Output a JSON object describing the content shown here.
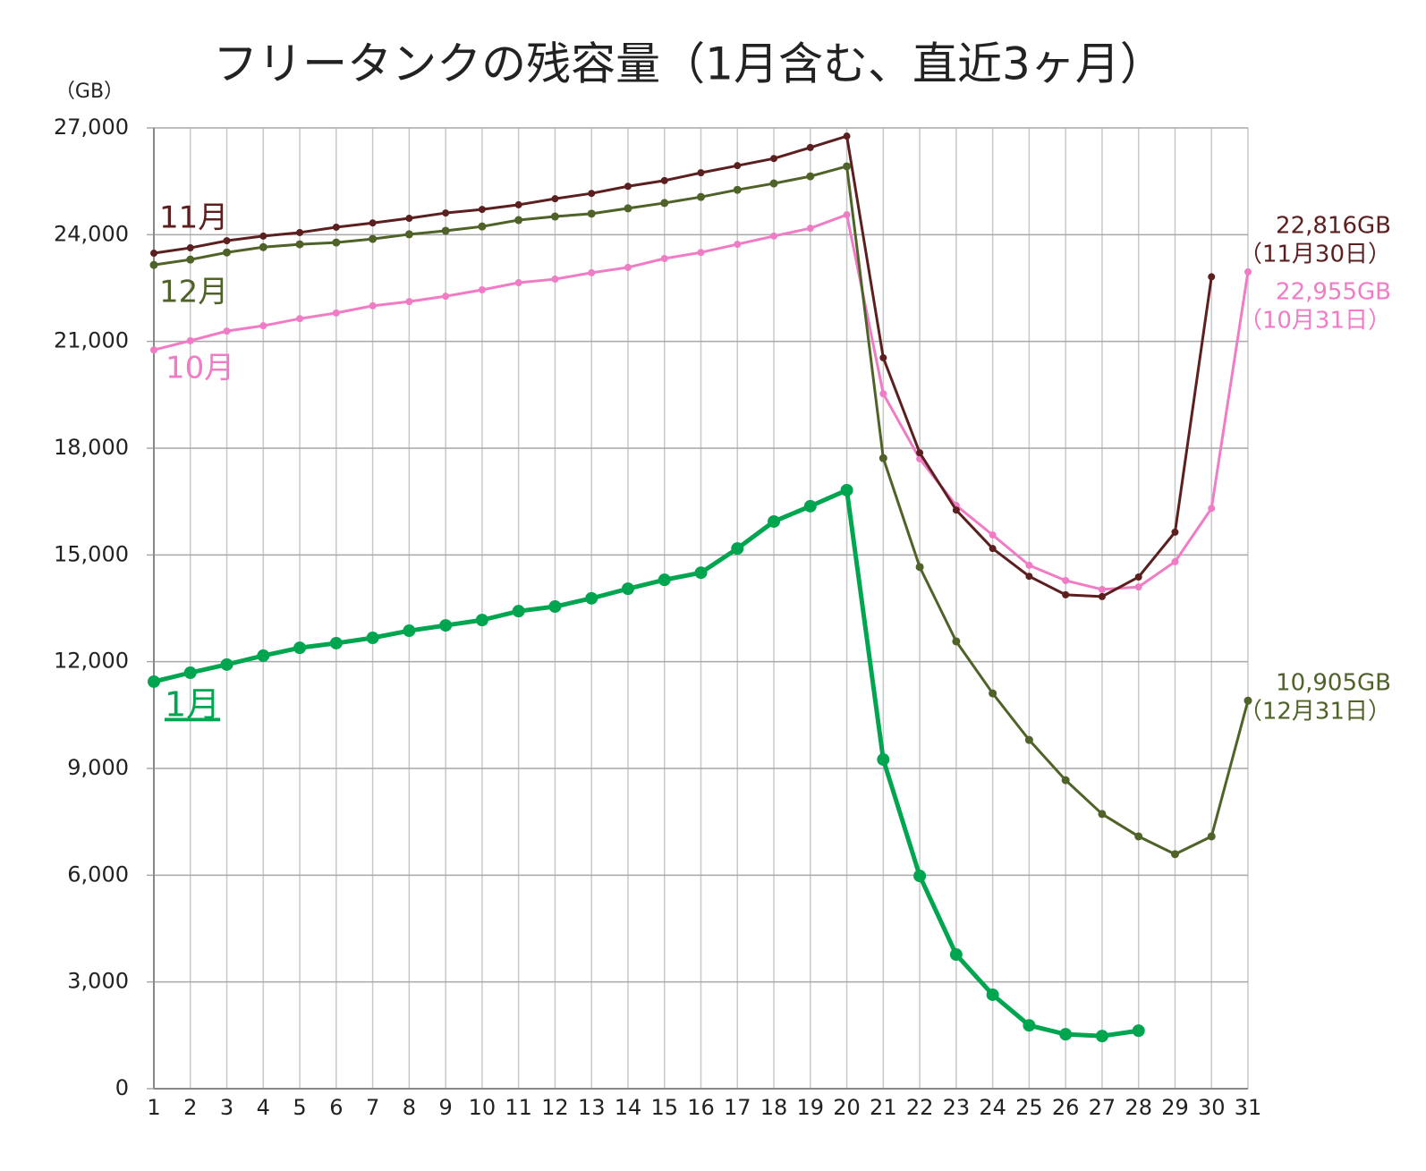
{
  "chart_data": {
    "type": "line",
    "title": "フリータンクの残容量（1月含む、直近3ヶ月）",
    "y_unit": "（GB）",
    "x": [
      1,
      2,
      3,
      4,
      5,
      6,
      7,
      8,
      9,
      10,
      11,
      12,
      13,
      14,
      15,
      16,
      17,
      18,
      19,
      20,
      21,
      22,
      23,
      24,
      25,
      26,
      27,
      28,
      29,
      30,
      31
    ],
    "xlim": [
      1,
      31
    ],
    "xticks": [
      1,
      2,
      3,
      4,
      5,
      6,
      7,
      8,
      9,
      10,
      11,
      12,
      13,
      14,
      15,
      16,
      17,
      18,
      19,
      20,
      21,
      22,
      23,
      24,
      25,
      26,
      27,
      28,
      29,
      30,
      31
    ],
    "ylim": [
      0,
      27000
    ],
    "yticks": [
      0,
      {
        "value": 3000,
        "label": "3,000"
      },
      {
        "value": 6000,
        "label": "6,000"
      },
      {
        "value": 9000,
        "label": "9,000"
      },
      {
        "value": 12000,
        "label": "12,000"
      },
      {
        "value": 15000,
        "label": "15,000"
      },
      {
        "value": 18000,
        "label": "18,000"
      },
      {
        "value": 21000,
        "label": "21,000"
      },
      {
        "value": 24000,
        "label": "24,000"
      },
      {
        "value": 27000,
        "label": "27,000"
      }
    ],
    "grid": true,
    "series": [
      {
        "name": "10月",
        "color": "#f07cc6",
        "values": [
          20760,
          21020,
          21290,
          21440,
          21640,
          21800,
          22000,
          22120,
          22270,
          22450,
          22650,
          22750,
          22930,
          23080,
          23330,
          23500,
          23730,
          23960,
          24180,
          24560,
          19530,
          17700,
          16390,
          15560,
          14710,
          14280,
          14030,
          14100,
          14810,
          16310,
          22955
        ]
      },
      {
        "name": "11月",
        "color": "#5c1f1f",
        "values": [
          23480,
          23630,
          23830,
          23960,
          24060,
          24210,
          24330,
          24460,
          24610,
          24710,
          24840,
          25010,
          25160,
          25360,
          25520,
          25740,
          25940,
          26140,
          26450,
          26770,
          20540,
          17870,
          16260,
          15180,
          14400,
          13880,
          13830,
          14380,
          15640,
          22816,
          null
        ]
      },
      {
        "name": "12月",
        "color": "#4f6228",
        "values": [
          23150,
          23300,
          23500,
          23650,
          23730,
          23780,
          23880,
          24010,
          24110,
          24230,
          24410,
          24510,
          24590,
          24740,
          24890,
          25060,
          25260,
          25440,
          25640,
          25920,
          17720,
          14660,
          12570,
          11110,
          9800,
          8670,
          7720,
          7090,
          6590,
          7090,
          10905
        ]
      },
      {
        "name": "1月",
        "color": "#00a550",
        "values": [
          11440,
          11690,
          11920,
          12170,
          12390,
          12520,
          12670,
          12870,
          13020,
          13170,
          13420,
          13550,
          13780,
          14050,
          14300,
          14500,
          15180,
          15940,
          16370,
          16820,
          9250,
          5980,
          3770,
          2640,
          1780,
          1530,
          1480,
          1630,
          null,
          null,
          null
        ]
      }
    ],
    "annotations": [
      {
        "lines": [
          "22,816GB",
          "（11月30日）"
        ],
        "color": "#5c1f1f"
      },
      {
        "lines": [
          "22,955GB",
          "（10月31日）"
        ],
        "color": "#f07cc6"
      },
      {
        "lines": [
          "10,905GB",
          "（12月31日）"
        ],
        "color": "#4f6228"
      }
    ]
  }
}
